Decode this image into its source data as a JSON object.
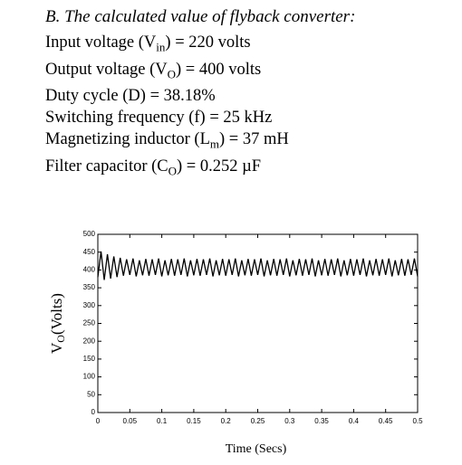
{
  "heading": "B. The calculated value of flyback converter:",
  "lines": [
    {
      "text": "Input voltage (V",
      "sub": "in",
      "rest": ") = 220 volts"
    },
    {
      "text": "Output voltage (V",
      "sub": "O",
      "rest": ") = 400 volts"
    },
    {
      "text": "Duty cycle (D) = 38.18%"
    },
    {
      "text": "Switching frequency (f) = 25 kHz"
    },
    {
      "text": "Magnetizing inductor (L",
      "sub": "m",
      "rest": ") = 37 mH"
    },
    {
      "text": "Filter capacitor (C",
      "sub": "O",
      "rest": ") = 0.252 µF"
    }
  ],
  "chart_data": {
    "type": "line",
    "color": "#000000",
    "xlabel": "Time (Secs)",
    "ylabel": "V",
    "ylabel_sub": "O",
    "ylabel_rest": "(Volts)",
    "xlim": [
      0,
      0.5
    ],
    "ylim": [
      0,
      500
    ],
    "xticks": [
      0,
      0.05,
      0.1,
      0.15,
      0.2,
      0.25,
      0.3,
      0.35,
      0.4,
      0.45,
      0.5
    ],
    "yticks": [
      0,
      50,
      100,
      150,
      200,
      250,
      300,
      350,
      400,
      450,
      500
    ],
    "x": [
      0,
      0.005,
      0.01,
      0.015,
      0.02,
      0.025,
      0.03,
      0.035,
      0.04,
      0.045,
      0.05,
      0.055,
      0.06,
      0.065,
      0.07,
      0.075,
      0.08,
      0.085,
      0.09,
      0.095,
      0.1,
      0.105,
      0.11,
      0.115,
      0.12,
      0.125,
      0.13,
      0.135,
      0.14,
      0.145,
      0.15,
      0.155,
      0.16,
      0.165,
      0.17,
      0.175,
      0.18,
      0.185,
      0.19,
      0.195,
      0.2,
      0.205,
      0.21,
      0.215,
      0.22,
      0.225,
      0.23,
      0.235,
      0.24,
      0.245,
      0.25,
      0.255,
      0.26,
      0.265,
      0.27,
      0.275,
      0.28,
      0.285,
      0.29,
      0.295,
      0.3,
      0.305,
      0.31,
      0.315,
      0.32,
      0.325,
      0.33,
      0.335,
      0.34,
      0.345,
      0.35,
      0.355,
      0.36,
      0.365,
      0.37,
      0.375,
      0.38,
      0.385,
      0.39,
      0.395,
      0.4,
      0.405,
      0.41,
      0.415,
      0.42,
      0.425,
      0.43,
      0.435,
      0.44,
      0.445,
      0.45,
      0.455,
      0.46,
      0.465,
      0.47,
      0.475,
      0.48,
      0.485,
      0.49,
      0.495,
      0.5
    ],
    "values": [
      380,
      452,
      372,
      444,
      376,
      438,
      380,
      434,
      384,
      430,
      386,
      432,
      382,
      427,
      385,
      431,
      384,
      430,
      386,
      432,
      382,
      427,
      385,
      431,
      384,
      430,
      386,
      432,
      382,
      427,
      385,
      431,
      384,
      430,
      386,
      432,
      382,
      427,
      385,
      431,
      384,
      430,
      386,
      432,
      382,
      427,
      385,
      431,
      384,
      430,
      386,
      432,
      382,
      427,
      385,
      431,
      384,
      430,
      386,
      432,
      382,
      427,
      385,
      431,
      384,
      430,
      386,
      432,
      382,
      427,
      385,
      431,
      384,
      430,
      386,
      432,
      382,
      427,
      385,
      431,
      384,
      430,
      386,
      432,
      382,
      427,
      385,
      431,
      384,
      430,
      386,
      432,
      382,
      427,
      385,
      431,
      384,
      430,
      386,
      432,
      382
    ]
  }
}
